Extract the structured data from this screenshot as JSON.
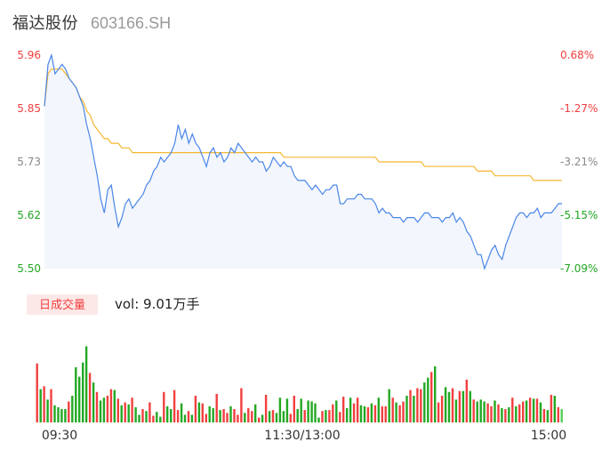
{
  "header": {
    "stock_name": "福达股份",
    "stock_code": "603166.SH"
  },
  "colors": {
    "up": "#f23f3f",
    "down": "#22a822",
    "flat": "#888888",
    "price_line": "#4a86e8",
    "avg_line": "#f5b731",
    "area_fill": "#f3f6fc",
    "badge_bg": "#fde8e8",
    "badge_text": "#f23f3f"
  },
  "volume": {
    "badge_label": "日成交量",
    "summary": "vol: 9.01万手"
  },
  "chart_data": [
    {
      "type": "line",
      "title": "",
      "y_left_ticks": [
        "5.96",
        "5.85",
        "5.73",
        "5.62",
        "5.50"
      ],
      "y_right_ticks": [
        "0.68%",
        "-1.27%",
        "-3.21%",
        "-5.15%",
        "-7.09%"
      ],
      "x_ticks": [
        "09:30",
        "11:30/13:00",
        "15:00"
      ],
      "ylim": [
        5.5,
        5.96
      ],
      "prev_close": 5.92,
      "grid": false,
      "series": [
        {
          "role": "price",
          "values": [
            5.85,
            5.94,
            5.96,
            5.92,
            5.93,
            5.94,
            5.93,
            5.91,
            5.9,
            5.89,
            5.87,
            5.85,
            5.81,
            5.78,
            5.74,
            5.7,
            5.65,
            5.62,
            5.67,
            5.68,
            5.63,
            5.59,
            5.61,
            5.64,
            5.65,
            5.63,
            5.64,
            5.65,
            5.66,
            5.68,
            5.69,
            5.71,
            5.72,
            5.74,
            5.73,
            5.74,
            5.75,
            5.77,
            5.81,
            5.78,
            5.8,
            5.77,
            5.79,
            5.77,
            5.76,
            5.74,
            5.72,
            5.75,
            5.76,
            5.74,
            5.75,
            5.73,
            5.74,
            5.76,
            5.75,
            5.77,
            5.76,
            5.75,
            5.74,
            5.73,
            5.74,
            5.73,
            5.73,
            5.71,
            5.72,
            5.74,
            5.73,
            5.72,
            5.73,
            5.72,
            5.72,
            5.7,
            5.69,
            5.69,
            5.69,
            5.68,
            5.67,
            5.68,
            5.67,
            5.66,
            5.67,
            5.67,
            5.68,
            5.68,
            5.64,
            5.64,
            5.65,
            5.65,
            5.65,
            5.66,
            5.66,
            5.65,
            5.65,
            5.65,
            5.64,
            5.62,
            5.63,
            5.62,
            5.62,
            5.61,
            5.61,
            5.61,
            5.6,
            5.61,
            5.61,
            5.61,
            5.6,
            5.61,
            5.62,
            5.62,
            5.61,
            5.61,
            5.61,
            5.6,
            5.61,
            5.61,
            5.62,
            5.6,
            5.61,
            5.6,
            5.58,
            5.57,
            5.55,
            5.53,
            5.53,
            5.5,
            5.52,
            5.54,
            5.55,
            5.53,
            5.52,
            5.55,
            5.57,
            5.59,
            5.61,
            5.62,
            5.62,
            5.61,
            5.62,
            5.62,
            5.63,
            5.61,
            5.62,
            5.62,
            5.62,
            5.63,
            5.64,
            5.64
          ]
        },
        {
          "role": "average",
          "values": [
            5.85,
            5.92,
            5.93,
            5.93,
            5.93,
            5.93,
            5.92,
            5.91,
            5.9,
            5.89,
            5.87,
            5.86,
            5.84,
            5.83,
            5.81,
            5.8,
            5.79,
            5.78,
            5.78,
            5.77,
            5.77,
            5.77,
            5.76,
            5.76,
            5.76,
            5.75,
            5.75,
            5.75,
            5.75,
            5.75,
            5.75,
            5.75,
            5.75,
            5.75,
            5.75,
            5.75,
            5.75,
            5.75,
            5.75,
            5.75,
            5.75,
            5.75,
            5.75,
            5.75,
            5.75,
            5.75,
            5.75,
            5.75,
            5.75,
            5.75,
            5.75,
            5.75,
            5.75,
            5.75,
            5.75,
            5.75,
            5.75,
            5.75,
            5.75,
            5.75,
            5.75,
            5.75,
            5.75,
            5.75,
            5.75,
            5.75,
            5.75,
            5.75,
            5.74,
            5.74,
            5.74,
            5.74,
            5.74,
            5.74,
            5.74,
            5.74,
            5.74,
            5.74,
            5.74,
            5.74,
            5.74,
            5.74,
            5.74,
            5.74,
            5.74,
            5.74,
            5.74,
            5.74,
            5.74,
            5.74,
            5.74,
            5.74,
            5.74,
            5.74,
            5.74,
            5.73,
            5.73,
            5.73,
            5.73,
            5.73,
            5.73,
            5.73,
            5.73,
            5.73,
            5.73,
            5.73,
            5.73,
            5.73,
            5.72,
            5.72,
            5.72,
            5.72,
            5.72,
            5.72,
            5.72,
            5.72,
            5.72,
            5.72,
            5.72,
            5.72,
            5.72,
            5.72,
            5.72,
            5.71,
            5.71,
            5.71,
            5.71,
            5.71,
            5.7,
            5.7,
            5.7,
            5.7,
            5.7,
            5.7,
            5.7,
            5.7,
            5.7,
            5.7,
            5.7,
            5.69,
            5.69,
            5.69,
            5.69,
            5.69,
            5.69,
            5.69,
            5.69,
            5.69
          ]
        }
      ]
    },
    {
      "type": "bar",
      "title": "",
      "ylim": [
        0,
        100
      ],
      "values": [
        62,
        35,
        38,
        24,
        35,
        18,
        16,
        14,
        14,
        22,
        28,
        58,
        48,
        63,
        80,
        52,
        42,
        32,
        23,
        26,
        28,
        35,
        34,
        25,
        18,
        21,
        19,
        26,
        16,
        8,
        14,
        12,
        21,
        7,
        11,
        6,
        32,
        17,
        14,
        34,
        13,
        20,
        8,
        12,
        8,
        28,
        21,
        20,
        9,
        17,
        15,
        30,
        13,
        14,
        10,
        17,
        14,
        8,
        36,
        10,
        15,
        12,
        19,
        5,
        8,
        29,
        12,
        13,
        10,
        26,
        12,
        25,
        9,
        28,
        14,
        25,
        13,
        23,
        22,
        20,
        5,
        12,
        13,
        13,
        19,
        23,
        11,
        27,
        15,
        26,
        20,
        26,
        18,
        17,
        16,
        20,
        18,
        26,
        17,
        17,
        35,
        26,
        21,
        18,
        22,
        28,
        34,
        28,
        36,
        35,
        42,
        47,
        53,
        59,
        21,
        28,
        37,
        32,
        36,
        24,
        33,
        33,
        45,
        33,
        24,
        22,
        24,
        22,
        20,
        17,
        23,
        19,
        15,
        14,
        16,
        26,
        17,
        19,
        22,
        23,
        26,
        25,
        25,
        21,
        14,
        13,
        29,
        28,
        16,
        14
      ],
      "directions": [
        "u",
        "d",
        "u",
        "d",
        "u",
        "d",
        "d",
        "d",
        "d",
        "u",
        "d",
        "d",
        "d",
        "d",
        "d",
        "u",
        "d",
        "u",
        "d",
        "d",
        "u",
        "u",
        "d",
        "u",
        "d",
        "u",
        "d",
        "u",
        "d",
        "d",
        "u",
        "d",
        "u",
        "u",
        "d",
        "d",
        "u",
        "d",
        "d",
        "u",
        "u",
        "d",
        "d",
        "u",
        "d",
        "u",
        "d",
        "u",
        "u",
        "d",
        "d",
        "u",
        "d",
        "u",
        "u",
        "d",
        "u",
        "u",
        "u",
        "d",
        "u",
        "u",
        "d",
        "u",
        "d",
        "u",
        "d",
        "u",
        "d",
        "d",
        "d",
        "d",
        "u",
        "u",
        "d",
        "d",
        "u",
        "d",
        "d",
        "d",
        "d",
        "u",
        "d",
        "u",
        "u",
        "d",
        "u",
        "u",
        "d",
        "d",
        "u",
        "u",
        "d",
        "d",
        "u",
        "d",
        "u",
        "d",
        "u",
        "u",
        "d",
        "u",
        "d",
        "u",
        "u",
        "d",
        "u",
        "d",
        "u",
        "u",
        "d",
        "d",
        "u",
        "d",
        "u",
        "u",
        "d",
        "d",
        "u",
        "d",
        "u",
        "d",
        "u",
        "d",
        "u",
        "d",
        "d",
        "d",
        "u",
        "u",
        "d",
        "u",
        "d",
        "u",
        "d",
        "u",
        "d",
        "u",
        "u",
        "d",
        "u",
        "d",
        "u",
        "d",
        "u",
        "d",
        "u",
        "d",
        "u",
        "f"
      ]
    }
  ]
}
